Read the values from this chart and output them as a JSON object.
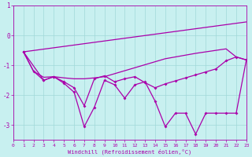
{
  "bg_color": "#c8f0f0",
  "line_color": "#aa00aa",
  "grid_color": "#a0d8d8",
  "xlabel": "Windchill (Refroidissement éolien,°C)",
  "xlim": [
    0,
    23
  ],
  "ylim": [
    -3.5,
    0.6
  ],
  "yticks": [
    1,
    0,
    -1,
    -2,
    -3
  ],
  "xticks": [
    0,
    1,
    2,
    3,
    4,
    5,
    6,
    7,
    8,
    9,
    10,
    11,
    12,
    13,
    14,
    15,
    16,
    17,
    18,
    19,
    20,
    21,
    22,
    23
  ],
  "line1_x": [
    1,
    2,
    3,
    4,
    5,
    6,
    7,
    8,
    9,
    10,
    11,
    12,
    13,
    14,
    15,
    16,
    17,
    18,
    19,
    20,
    21,
    22,
    23
  ],
  "line1_y": [
    -0.55,
    -1.2,
    -1.4,
    -1.38,
    -1.42,
    -1.45,
    -1.45,
    -1.42,
    -1.38,
    -1.28,
    -1.18,
    -1.08,
    -0.98,
    -0.88,
    -0.78,
    -0.72,
    -0.66,
    -0.6,
    -0.55,
    -0.5,
    -0.45,
    -0.72,
    -0.82
  ],
  "line2_x": [
    1,
    3,
    4,
    5,
    6,
    7,
    8,
    9,
    10,
    11,
    12,
    13,
    14,
    15,
    16,
    17,
    18,
    19,
    20,
    21,
    22,
    23
  ],
  "line2_y": [
    -0.55,
    -1.5,
    -1.38,
    -1.6,
    -1.9,
    -3.05,
    -2.4,
    -1.5,
    -1.65,
    -2.1,
    -1.65,
    -1.55,
    -2.2,
    -3.05,
    -2.6,
    -2.6,
    -3.3,
    -2.6,
    -2.6,
    -2.6,
    -2.6,
    -0.82
  ],
  "line3_x": [
    1,
    2,
    3,
    4,
    5,
    6,
    7,
    8,
    9,
    10,
    11,
    12,
    13,
    14,
    15,
    16,
    17,
    18,
    19,
    20,
    21,
    22,
    23
  ],
  "line3_y": [
    -0.55,
    -1.2,
    -1.5,
    -1.38,
    -1.55,
    -1.75,
    -2.35,
    -1.45,
    -1.35,
    -1.55,
    -1.45,
    -1.38,
    -1.58,
    -1.75,
    -1.62,
    -1.52,
    -1.42,
    -1.32,
    -1.22,
    -1.12,
    -0.85,
    -0.72,
    -0.82
  ],
  "line4_x": [
    1,
    23
  ],
  "line4_y": [
    -0.55,
    0.45
  ]
}
